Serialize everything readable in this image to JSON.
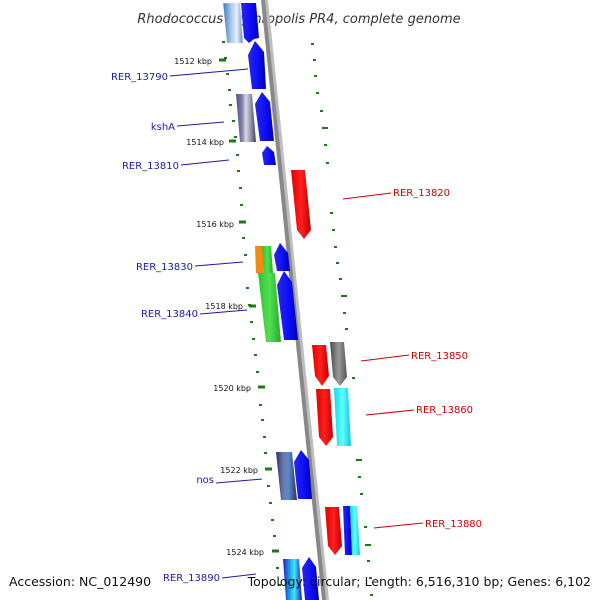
{
  "title": "Rhodococcus erythropolis PR4, complete genome",
  "accession": "Accession: NC_012490",
  "topology": "Topology: circular; Length: 6,516,310 bp; Genes: 6,102",
  "ticks": [
    "1512 kbp",
    "1514 kbp",
    "1516 kbp",
    "1518 kbp",
    "1520 kbp",
    "1522 kbp",
    "1524 kbp"
  ],
  "left_labels": [
    "RER_13790",
    "kshA",
    "RER_13810",
    "RER_13830",
    "RER_13840",
    "nos",
    "RER_13890"
  ],
  "right_labels": [
    "RER_13820",
    "RER_13850",
    "RER_13860",
    "RER_13880"
  ],
  "colors": {
    "left_label": "#1a1aa8",
    "right_label": "#cc0000",
    "tick": "#1a7a1a",
    "backbone": "#888888"
  }
}
